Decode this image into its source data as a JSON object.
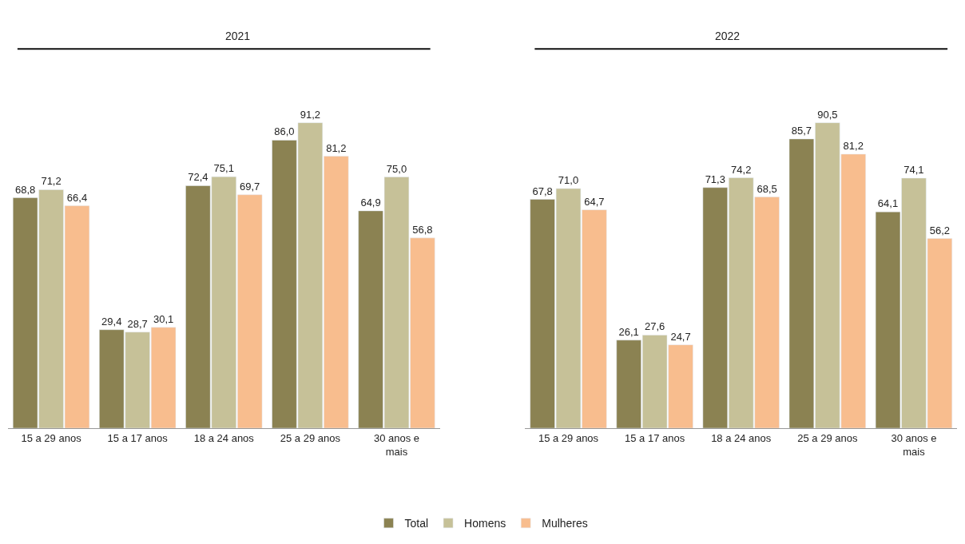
{
  "chart_data": [
    {
      "type": "bar",
      "title": "2021",
      "categories": [
        "15 a 29 anos",
        "15 a 17 anos",
        "18 a 24 anos",
        "25 a 29 anos",
        "30 anos e mais"
      ],
      "legend": "bottom",
      "series": [
        {
          "name": "Total",
          "color": "#8b8252",
          "values": [
            68.8,
            29.4,
            72.4,
            86.0,
            64.9
          ],
          "value_labels": [
            "68,8",
            "29,4",
            "72,4",
            "86,0",
            "64,9"
          ]
        },
        {
          "name": "Homens",
          "color": "#c6c198",
          "values": [
            71.2,
            28.7,
            75.1,
            91.2,
            75.0
          ],
          "value_labels": [
            "71,2",
            "28,7",
            "75,1",
            "91,2",
            "75,0"
          ]
        },
        {
          "name": "Mulheres",
          "color": "#f8bd8e",
          "values": [
            66.4,
            30.1,
            69.7,
            81.2,
            56.8
          ],
          "value_labels": [
            "66,4",
            "30,1",
            "69,7",
            "81,2",
            "56,8"
          ]
        }
      ]
    },
    {
      "type": "bar",
      "title": "2022",
      "categories": [
        "15 a 29 anos",
        "15 a 17 anos",
        "18 a 24 anos",
        "25 a 29 anos",
        "30 anos e mais"
      ],
      "legend": "bottom",
      "series": [
        {
          "name": "Total",
          "color": "#8b8252",
          "values": [
            67.8,
            26.1,
            71.3,
            85.7,
            64.1
          ],
          "value_labels": [
            "67,8",
            "26,1",
            "71,3",
            "85,7",
            "64,1"
          ]
        },
        {
          "name": "Homens",
          "color": "#c6c198",
          "values": [
            71.0,
            27.6,
            74.2,
            90.5,
            74.1
          ],
          "value_labels": [
            "71,0",
            "27,6",
            "74,2",
            "90,5",
            "74,1"
          ]
        },
        {
          "name": "Mulheres",
          "color": "#f8bd8e",
          "values": [
            64.7,
            24.7,
            68.5,
            81.2,
            56.2
          ],
          "value_labels": [
            "64,7",
            "24,7",
            "68,5",
            "81,2",
            "56,2"
          ]
        }
      ]
    }
  ]
}
